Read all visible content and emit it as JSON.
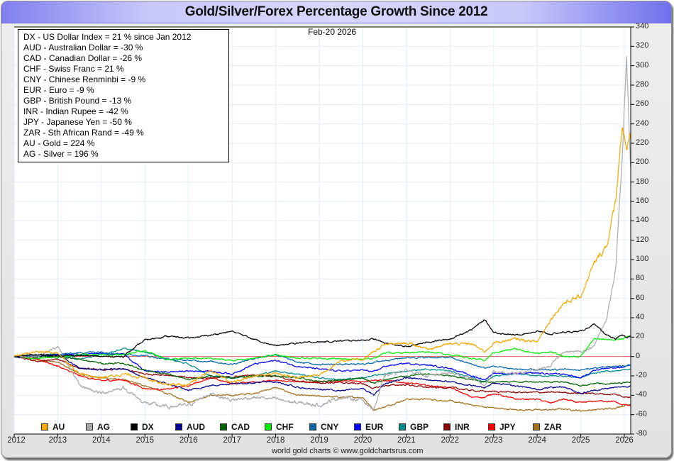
{
  "title": "Gold/Silver/Forex Percentage Growth Since 2012",
  "date_stamp": "Feb-20  2026",
  "info_box": [
    "DX - US Dollar Index = 21 % since Jan 2012",
    "AUD - Australian Dollar = -30 %",
    "CAD - Canadian Dollar = -26 %",
    "CHF - Swiss Franc = 21 %",
    "CNY - Chinese Renminbi = -9 %",
    "EUR - Euro = -9 %",
    "GBP - British Pound = -13 %",
    "INR - Indian Rupee = -42 %",
    "JPY - Japanese Yen = -50 %",
    "ZAR - Sth African Rand = -49 %",
    "AU - Gold = 224 %",
    "AG - Silver = 196 %"
  ],
  "credit": "world gold charts © www.goldchartsrus.com",
  "chart_data": {
    "type": "line",
    "title": "Gold/Silver/Forex Percentage Growth Since 2012",
    "xlabel": "",
    "ylabel": "",
    "xlim": [
      2012,
      2026.14
    ],
    "ylim": [
      -80,
      340
    ],
    "x_ticks": [
      "2012",
      "2013",
      "2014",
      "2015",
      "2016",
      "2017",
      "2018",
      "2019",
      "2020",
      "2021",
      "2022",
      "2023",
      "2024",
      "2025",
      "2026"
    ],
    "y_ticks": [
      340,
      320,
      300,
      280,
      260,
      240,
      220,
      200,
      180,
      160,
      140,
      120,
      100,
      80,
      60,
      40,
      20,
      0,
      -20,
      -40,
      -60,
      -80
    ],
    "y_axis_side": "right",
    "grid": true,
    "zero_line_color": "#e05050",
    "legend_position": "bottom",
    "x": [
      2012.0,
      2012.5,
      2013.0,
      2013.5,
      2014.0,
      2014.5,
      2015.0,
      2015.5,
      2016.0,
      2016.5,
      2017.0,
      2017.5,
      2018.0,
      2018.5,
      2019.0,
      2019.5,
      2020.0,
      2020.25,
      2020.5,
      2021.0,
      2021.5,
      2022.0,
      2022.5,
      2022.8,
      2023.0,
      2023.5,
      2024.0,
      2024.3,
      2024.6,
      2025.0,
      2025.3,
      2025.6,
      2025.8,
      2025.95,
      2026.05,
      2026.14
    ],
    "series": [
      {
        "name": "AU",
        "color": "#f5a800",
        "values": [
          0,
          5,
          4,
          -18,
          -22,
          -18,
          -22,
          -28,
          -30,
          -14,
          -27,
          -20,
          -17,
          -22,
          -19,
          -4,
          -3,
          5,
          12,
          14,
          8,
          13,
          13,
          5,
          14,
          18,
          15,
          38,
          55,
          62,
          95,
          115,
          160,
          240,
          215,
          224
        ]
      },
      {
        "name": "AG",
        "color": "#aaaaaa",
        "values": [
          0,
          0,
          10,
          -30,
          -38,
          -32,
          -48,
          -52,
          -50,
          -38,
          -45,
          -42,
          -44,
          -48,
          -50,
          -42,
          -45,
          -55,
          -20,
          -14,
          -20,
          -17,
          -22,
          -30,
          -15,
          -18,
          -14,
          -10,
          5,
          5,
          10,
          40,
          90,
          200,
          312,
          196
        ]
      },
      {
        "name": "DX",
        "color": "#000000",
        "values": [
          0,
          2,
          1,
          1,
          0,
          0,
          17,
          21,
          19,
          22,
          26,
          18,
          11,
          14,
          15,
          16,
          17,
          18,
          14,
          10,
          15,
          18,
          28,
          38,
          25,
          22,
          26,
          23,
          25,
          26,
          33,
          22,
          18,
          22,
          20,
          21
        ]
      },
      {
        "name": "AUD",
        "color": "#00008b",
        "values": [
          0,
          0,
          2,
          -12,
          -14,
          -12,
          -22,
          -28,
          -35,
          -30,
          -28,
          -27,
          -26,
          -32,
          -34,
          -35,
          -33,
          -40,
          -28,
          -22,
          -24,
          -26,
          -30,
          -32,
          -27,
          -30,
          -34,
          -32,
          -31,
          -38,
          -35,
          -33,
          -32,
          -31,
          -31,
          -30
        ]
      },
      {
        "name": "CAD",
        "color": "#006400",
        "values": [
          0,
          0,
          0,
          -3,
          -7,
          -7,
          -14,
          -18,
          -24,
          -20,
          -22,
          -20,
          -20,
          -22,
          -26,
          -24,
          -22,
          -28,
          -24,
          -20,
          -18,
          -20,
          -24,
          -26,
          -26,
          -26,
          -26,
          -26,
          -26,
          -30,
          -28,
          -28,
          -28,
          -27,
          -26,
          -26
        ]
      },
      {
        "name": "CHF",
        "color": "#00ee00",
        "values": [
          0,
          -2,
          -1,
          2,
          2,
          2,
          6,
          -3,
          -2,
          -2,
          -4,
          -2,
          2,
          -2,
          -2,
          -2,
          -3,
          -2,
          4,
          4,
          5,
          2,
          -2,
          -4,
          4,
          8,
          3,
          5,
          0,
          0,
          18,
          18,
          17,
          18,
          20,
          21
        ]
      },
      {
        "name": "CNY",
        "color": "#0066aa",
        "values": [
          0,
          1,
          2,
          4,
          5,
          2,
          1,
          -3,
          -4,
          -5,
          -8,
          -2,
          2,
          -6,
          -8,
          -8,
          -8,
          -6,
          -4,
          -1,
          -1,
          -1,
          -8,
          -12,
          -10,
          -13,
          -14,
          -14,
          -13,
          -14,
          -12,
          -11,
          -10,
          -10,
          -9,
          -9
        ]
      },
      {
        "name": "EUR",
        "color": "#0000ff",
        "values": [
          0,
          0,
          2,
          2,
          3,
          3,
          -15,
          -16,
          -15,
          -15,
          -18,
          -8,
          -4,
          -10,
          -13,
          -15,
          -14,
          -16,
          -10,
          -7,
          -9,
          -12,
          -20,
          -24,
          -17,
          -18,
          -17,
          -18,
          -18,
          -22,
          -14,
          -12,
          -12,
          -11,
          -10,
          -9
        ]
      },
      {
        "name": "GBP",
        "color": "#008b8b",
        "values": [
          0,
          1,
          2,
          -3,
          2,
          8,
          5,
          -2,
          -8,
          -20,
          -22,
          -20,
          -15,
          -18,
          -22,
          -24,
          -22,
          -20,
          -18,
          -15,
          -13,
          -15,
          -22,
          -26,
          -20,
          -18,
          -20,
          -20,
          -20,
          -22,
          -17,
          -15,
          -15,
          -14,
          -13,
          -13
        ]
      },
      {
        "name": "INR",
        "color": "#8b0000",
        "values": [
          0,
          -5,
          -3,
          -12,
          -14,
          -13,
          -18,
          -19,
          -22,
          -22,
          -21,
          -19,
          -20,
          -26,
          -27,
          -27,
          -28,
          -33,
          -30,
          -29,
          -32,
          -32,
          -35,
          -36,
          -36,
          -37,
          -37,
          -37,
          -37,
          -38,
          -38,
          -39,
          -39,
          -41,
          -42,
          -42
        ]
      },
      {
        "name": "JPY",
        "color": "#ff0000",
        "values": [
          0,
          -2,
          -10,
          -20,
          -25,
          -24,
          -33,
          -34,
          -30,
          -22,
          -28,
          -26,
          -25,
          -26,
          -26,
          -25,
          -26,
          -24,
          -25,
          -27,
          -30,
          -32,
          -42,
          -42,
          -38,
          -44,
          -44,
          -48,
          -44,
          -48,
          -46,
          -46,
          -47,
          -50,
          -50,
          -50
        ]
      },
      {
        "name": "ZAR",
        "color": "#a0701a",
        "values": [
          0,
          -3,
          -6,
          -18,
          -22,
          -24,
          -30,
          -38,
          -47,
          -40,
          -40,
          -38,
          -32,
          -40,
          -41,
          -42,
          -42,
          -55,
          -52,
          -44,
          -44,
          -46,
          -50,
          -52,
          -53,
          -55,
          -55,
          -55,
          -54,
          -56,
          -55,
          -54,
          -53,
          -51,
          -50,
          -49
        ]
      }
    ]
  }
}
